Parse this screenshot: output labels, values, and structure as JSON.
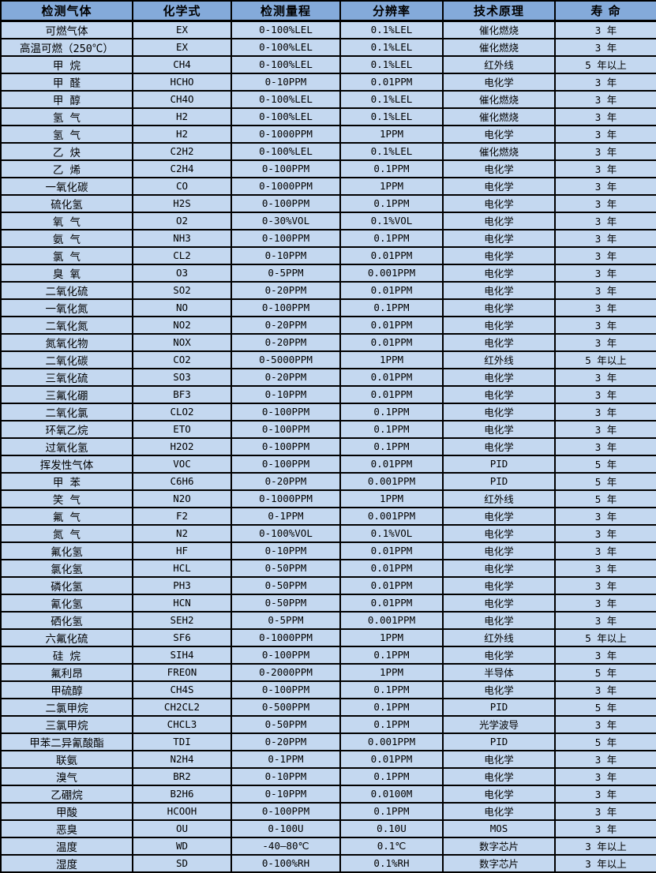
{
  "colors": {
    "header_bg": "#84aada",
    "row_bg": "#c4d8f0",
    "border": "#000000",
    "text": "#000000"
  },
  "table": {
    "headers": [
      "检测气体",
      "化学式",
      "检测量程",
      "分辨率",
      "技术原理",
      "寿 命"
    ],
    "rows": [
      [
        "可燃气体",
        "EX",
        "0-100%LEL",
        "0.1%LEL",
        "催化燃烧",
        "3 年"
      ],
      [
        "高温可燃（250℃）",
        "EX",
        "0-100%LEL",
        "0.1%LEL",
        "催化燃烧",
        "3 年"
      ],
      [
        "甲 烷",
        "CH4",
        "0-100%LEL",
        "0.1%LEL",
        "红外线",
        "5 年以上"
      ],
      [
        "甲 醛",
        "HCHO",
        "0-10PPM",
        "0.01PPM",
        "电化学",
        "3 年"
      ],
      [
        "甲 醇",
        "CH4O",
        "0-100%LEL",
        "0.1%LEL",
        "催化燃烧",
        "3 年"
      ],
      [
        "氢 气",
        "H2",
        "0-100%LEL",
        "0.1%LEL",
        "催化燃烧",
        "3 年"
      ],
      [
        "氢 气",
        "H2",
        "0-1000PPM",
        "1PPM",
        "电化学",
        "3 年"
      ],
      [
        "乙 炔",
        "C2H2",
        "0-100%LEL",
        "0.1%LEL",
        "催化燃烧",
        "3 年"
      ],
      [
        "乙 烯",
        "C2H4",
        "0-100PPM",
        "0.1PPM",
        "电化学",
        "3 年"
      ],
      [
        "一氧化碳",
        "CO",
        "0-1000PPM",
        "1PPM",
        "电化学",
        "3 年"
      ],
      [
        "硫化氢",
        "H2S",
        "0-100PPM",
        "0.1PPM",
        "电化学",
        "3 年"
      ],
      [
        "氧 气",
        "O2",
        "0-30%VOL",
        "0.1%VOL",
        "电化学",
        "3 年"
      ],
      [
        "氨 气",
        "NH3",
        "0-100PPM",
        "0.1PPM",
        "电化学",
        "3 年"
      ],
      [
        "氯 气",
        "CL2",
        "0-10PPM",
        "0.01PPM",
        "电化学",
        "3 年"
      ],
      [
        "臭 氧",
        "O3",
        "0-5PPM",
        "0.001PPM",
        "电化学",
        "3 年"
      ],
      [
        "二氧化硫",
        "SO2",
        "0-20PPM",
        "0.01PPM",
        "电化学",
        "3 年"
      ],
      [
        "一氧化氮",
        "NO",
        "0-100PPM",
        "0.1PPM",
        "电化学",
        "3 年"
      ],
      [
        "二氧化氮",
        "NO2",
        "0-20PPM",
        "0.01PPM",
        "电化学",
        "3 年"
      ],
      [
        "氮氧化物",
        "NOX",
        "0-20PPM",
        "0.01PPM",
        "电化学",
        "3 年"
      ],
      [
        "二氧化碳",
        "CO2",
        "0-5000PPM",
        "1PPM",
        "红外线",
        "5 年以上"
      ],
      [
        "三氧化硫",
        "SO3",
        "0-20PPM",
        "0.01PPM",
        "电化学",
        "3 年"
      ],
      [
        "三氟化硼",
        "BF3",
        "0-10PPM",
        "0.01PPM",
        "电化学",
        "3 年"
      ],
      [
        "二氧化氯",
        "CLO2",
        "0-100PPM",
        "0.1PPM",
        "电化学",
        "3 年"
      ],
      [
        "环氧乙烷",
        "ETO",
        "0-100PPM",
        "0.1PPM",
        "电化学",
        "3 年"
      ],
      [
        "过氧化氢",
        "H2O2",
        "0-100PPM",
        "0.1PPM",
        "电化学",
        "3 年"
      ],
      [
        "挥发性气体",
        "VOC",
        "0-100PPM",
        "0.01PPM",
        "PID",
        "5 年"
      ],
      [
        "甲 苯",
        "C6H6",
        "0-20PPM",
        "0.001PPM",
        "PID",
        "5 年"
      ],
      [
        "笑 气",
        "N2O",
        "0-1000PPM",
        "1PPM",
        "红外线",
        "5 年"
      ],
      [
        "氟 气",
        "F2",
        "0-1PPM",
        "0.001PPM",
        "电化学",
        "3 年"
      ],
      [
        "氮 气",
        "N2",
        "0-100%VOL",
        "0.1%VOL",
        "电化学",
        "3 年"
      ],
      [
        "氟化氢",
        "HF",
        "0-10PPM",
        "0.01PPM",
        "电化学",
        "3 年"
      ],
      [
        "氯化氢",
        "HCL",
        "0-50PPM",
        "0.01PPM",
        "电化学",
        "3 年"
      ],
      [
        "磷化氢",
        "PH3",
        "0-50PPM",
        "0.01PPM",
        "电化学",
        "3 年"
      ],
      [
        "氰化氢",
        "HCN",
        "0-50PPM",
        "0.01PPM",
        "电化学",
        "3 年"
      ],
      [
        "硒化氢",
        "SEH2",
        "0-5PPM",
        "0.001PPM",
        "电化学",
        "3 年"
      ],
      [
        "六氟化硫",
        "SF6",
        "0-1000PPM",
        "1PPM",
        "红外线",
        "5 年以上"
      ],
      [
        "硅 烷",
        "SIH4",
        "0-100PPM",
        "0.1PPM",
        "电化学",
        "3 年"
      ],
      [
        "氟利昂",
        "FREON",
        "0-2000PPM",
        "1PPM",
        "半导体",
        "5 年"
      ],
      [
        "甲硫醇",
        "CH4S",
        "0-100PPM",
        "0.1PPM",
        "电化学",
        "3 年"
      ],
      [
        "二氯甲烷",
        "CH2CL2",
        "0-500PPM",
        "0.1PPM",
        "PID",
        "5 年"
      ],
      [
        "三氯甲烷",
        "CHCL3",
        "0-50PPM",
        "0.1PPM",
        "光学波导",
        "3 年"
      ],
      [
        "甲苯二异氰酸酯",
        "TDI",
        "0-20PPM",
        "0.001PPM",
        "PID",
        "5 年"
      ],
      [
        "联氨",
        "N2H4",
        "0-1PPM",
        "0.01PPM",
        "电化学",
        "3 年"
      ],
      [
        "溴气",
        "BR2",
        "0-10PPM",
        "0.1PPM",
        "电化学",
        "3 年"
      ],
      [
        "乙硼烷",
        "B2H6",
        "0-10PPM",
        "0.0100M",
        "电化学",
        "3 年"
      ],
      [
        "甲酸",
        "HCOOH",
        "0-100PPM",
        "0.1PPM",
        "电化学",
        "3 年"
      ],
      [
        "恶臭",
        "OU",
        "0-100U",
        "0.10U",
        "MOS",
        "3 年"
      ],
      [
        "温度",
        "WD",
        "-40—80℃",
        "0.1℃",
        "数字芯片",
        "3 年以上"
      ],
      [
        "湿度",
        "SD",
        "0-100%RH",
        "0.1%RH",
        "数字芯片",
        "3 年以上"
      ]
    ]
  }
}
